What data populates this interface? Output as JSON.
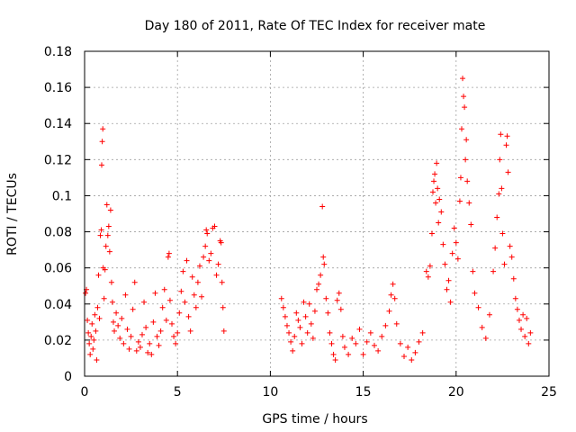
{
  "chart_data": {
    "type": "scatter",
    "title": "Day 180 of 2011, Rate Of TEC Index for receiver mate",
    "xlabel": "GPS time / hours",
    "ylabel": "ROTI / TECUs",
    "xlim": [
      0,
      25
    ],
    "ylim": [
      0,
      0.18
    ],
    "xticks": [
      "0",
      "5",
      "10",
      "15",
      "20",
      "25"
    ],
    "yticks": [
      "0",
      "0.02",
      "0.04",
      "0.06",
      "0.08",
      "0.1",
      "0.12",
      "0.14",
      "0.16",
      "0.18"
    ],
    "xtick_values": [
      0,
      5,
      10,
      15,
      20,
      25
    ],
    "ytick_values": [
      0,
      0.02,
      0.04,
      0.06,
      0.08,
      0.1,
      0.12,
      0.14,
      0.16,
      0.18
    ],
    "grid": true,
    "marker": "+",
    "color": "#ff0000",
    "series": [
      {
        "name": "",
        "points": [
          [
            0.05,
            0.046
          ],
          [
            0.1,
            0.048
          ],
          [
            0.15,
            0.031
          ],
          [
            0.2,
            0.024
          ],
          [
            0.25,
            0.018
          ],
          [
            0.3,
            0.012
          ],
          [
            0.35,
            0.022
          ],
          [
            0.4,
            0.029
          ],
          [
            0.45,
            0.015
          ],
          [
            0.5,
            0.02
          ],
          [
            0.55,
            0.034
          ],
          [
            0.6,
            0.025
          ],
          [
            0.65,
            0.009
          ],
          [
            0.7,
            0.038
          ],
          [
            0.75,
            0.056
          ],
          [
            0.8,
            0.032
          ],
          [
            0.85,
            0.078
          ],
          [
            0.9,
            0.081
          ],
          [
            0.92,
            0.117
          ],
          [
            0.95,
            0.13
          ],
          [
            0.98,
            0.137
          ],
          [
            1.0,
            0.06
          ],
          [
            1.05,
            0.043
          ],
          [
            1.1,
            0.059
          ],
          [
            1.15,
            0.072
          ],
          [
            1.2,
            0.095
          ],
          [
            1.25,
            0.078
          ],
          [
            1.3,
            0.083
          ],
          [
            1.35,
            0.069
          ],
          [
            1.4,
            0.092
          ],
          [
            1.45,
            0.052
          ],
          [
            1.5,
            0.041
          ],
          [
            1.55,
            0.03
          ],
          [
            1.6,
            0.025
          ],
          [
            1.7,
            0.035
          ],
          [
            1.8,
            0.028
          ],
          [
            1.9,
            0.021
          ],
          [
            2.0,
            0.032
          ],
          [
            2.1,
            0.018
          ],
          [
            2.2,
            0.045
          ],
          [
            2.3,
            0.026
          ],
          [
            2.4,
            0.015
          ],
          [
            2.5,
            0.022
          ],
          [
            2.6,
            0.037
          ],
          [
            2.7,
            0.052
          ],
          [
            2.8,
            0.014
          ],
          [
            2.9,
            0.019
          ],
          [
            3.0,
            0.016
          ],
          [
            3.1,
            0.023
          ],
          [
            3.2,
            0.041
          ],
          [
            3.3,
            0.027
          ],
          [
            3.4,
            0.013
          ],
          [
            3.5,
            0.018
          ],
          [
            3.6,
            0.012
          ],
          [
            3.7,
            0.03
          ],
          [
            3.8,
            0.046
          ],
          [
            3.9,
            0.022
          ],
          [
            4.0,
            0.017
          ],
          [
            4.1,
            0.025
          ],
          [
            4.2,
            0.038
          ],
          [
            4.3,
            0.048
          ],
          [
            4.4,
            0.031
          ],
          [
            4.5,
            0.066
          ],
          [
            4.55,
            0.068
          ],
          [
            4.6,
            0.042
          ],
          [
            4.7,
            0.029
          ],
          [
            4.8,
            0.022
          ],
          [
            4.9,
            0.018
          ],
          [
            5.0,
            0.024
          ],
          [
            5.1,
            0.035
          ],
          [
            5.2,
            0.047
          ],
          [
            5.3,
            0.058
          ],
          [
            5.4,
            0.041
          ],
          [
            5.5,
            0.064
          ],
          [
            5.6,
            0.033
          ],
          [
            5.7,
            0.025
          ],
          [
            5.8,
            0.055
          ],
          [
            5.9,
            0.045
          ],
          [
            6.0,
            0.038
          ],
          [
            6.1,
            0.052
          ],
          [
            6.2,
            0.061
          ],
          [
            6.3,
            0.044
          ],
          [
            6.4,
            0.066
          ],
          [
            6.5,
            0.072
          ],
          [
            6.55,
            0.081
          ],
          [
            6.6,
            0.079
          ],
          [
            6.7,
            0.064
          ],
          [
            6.8,
            0.068
          ],
          [
            6.9,
            0.082
          ],
          [
            7.0,
            0.083
          ],
          [
            7.1,
            0.056
          ],
          [
            7.2,
            0.062
          ],
          [
            7.3,
            0.075
          ],
          [
            7.35,
            0.074
          ],
          [
            7.4,
            0.052
          ],
          [
            7.45,
            0.038
          ],
          [
            7.5,
            0.025
          ],
          [
            10.6,
            0.043
          ],
          [
            10.7,
            0.038
          ],
          [
            10.8,
            0.033
          ],
          [
            10.9,
            0.028
          ],
          [
            11.0,
            0.024
          ],
          [
            11.1,
            0.019
          ],
          [
            11.2,
            0.014
          ],
          [
            11.3,
            0.022
          ],
          [
            11.4,
            0.035
          ],
          [
            11.5,
            0.031
          ],
          [
            11.6,
            0.027
          ],
          [
            11.7,
            0.018
          ],
          [
            11.8,
            0.041
          ],
          [
            11.9,
            0.033
          ],
          [
            12.0,
            0.024
          ],
          [
            12.1,
            0.04
          ],
          [
            12.2,
            0.029
          ],
          [
            12.3,
            0.021
          ],
          [
            12.4,
            0.036
          ],
          [
            12.5,
            0.048
          ],
          [
            12.6,
            0.051
          ],
          [
            12.7,
            0.056
          ],
          [
            12.8,
            0.094
          ],
          [
            12.85,
            0.066
          ],
          [
            12.9,
            0.062
          ],
          [
            13.0,
            0.043
          ],
          [
            13.1,
            0.035
          ],
          [
            13.2,
            0.024
          ],
          [
            13.3,
            0.018
          ],
          [
            13.4,
            0.012
          ],
          [
            13.5,
            0.009
          ],
          [
            13.6,
            0.042
          ],
          [
            13.7,
            0.046
          ],
          [
            13.8,
            0.037
          ],
          [
            13.9,
            0.022
          ],
          [
            14.0,
            0.016
          ],
          [
            14.2,
            0.012
          ],
          [
            14.4,
            0.021
          ],
          [
            14.6,
            0.018
          ],
          [
            14.8,
            0.026
          ],
          [
            15.0,
            0.012
          ],
          [
            15.2,
            0.019
          ],
          [
            15.4,
            0.024
          ],
          [
            15.6,
            0.017
          ],
          [
            15.8,
            0.014
          ],
          [
            16.0,
            0.022
          ],
          [
            16.2,
            0.028
          ],
          [
            16.4,
            0.036
          ],
          [
            16.5,
            0.045
          ],
          [
            16.6,
            0.051
          ],
          [
            16.7,
            0.043
          ],
          [
            16.8,
            0.029
          ],
          [
            17.0,
            0.018
          ],
          [
            17.2,
            0.011
          ],
          [
            17.4,
            0.016
          ],
          [
            17.6,
            0.009
          ],
          [
            17.8,
            0.013
          ],
          [
            18.0,
            0.019
          ],
          [
            18.2,
            0.024
          ],
          [
            18.4,
            0.058
          ],
          [
            18.5,
            0.055
          ],
          [
            18.6,
            0.061
          ],
          [
            18.7,
            0.079
          ],
          [
            18.75,
            0.102
          ],
          [
            18.8,
            0.108
          ],
          [
            18.85,
            0.112
          ],
          [
            18.9,
            0.096
          ],
          [
            18.95,
            0.118
          ],
          [
            19.0,
            0.104
          ],
          [
            19.05,
            0.085
          ],
          [
            19.1,
            0.098
          ],
          [
            19.2,
            0.091
          ],
          [
            19.3,
            0.073
          ],
          [
            19.4,
            0.062
          ],
          [
            19.5,
            0.048
          ],
          [
            19.6,
            0.053
          ],
          [
            19.7,
            0.041
          ],
          [
            19.8,
            0.068
          ],
          [
            19.9,
            0.082
          ],
          [
            20.0,
            0.074
          ],
          [
            20.1,
            0.065
          ],
          [
            20.2,
            0.097
          ],
          [
            20.25,
            0.11
          ],
          [
            20.3,
            0.137
          ],
          [
            20.35,
            0.165
          ],
          [
            20.4,
            0.155
          ],
          [
            20.45,
            0.149
          ],
          [
            20.5,
            0.12
          ],
          [
            20.55,
            0.131
          ],
          [
            20.6,
            0.108
          ],
          [
            20.7,
            0.096
          ],
          [
            20.8,
            0.084
          ],
          [
            20.9,
            0.058
          ],
          [
            21.0,
            0.046
          ],
          [
            21.2,
            0.038
          ],
          [
            21.4,
            0.027
          ],
          [
            21.6,
            0.021
          ],
          [
            21.8,
            0.034
          ],
          [
            22.0,
            0.058
          ],
          [
            22.1,
            0.071
          ],
          [
            22.2,
            0.088
          ],
          [
            22.3,
            0.101
          ],
          [
            22.35,
            0.12
          ],
          [
            22.4,
            0.134
          ],
          [
            22.45,
            0.104
          ],
          [
            22.5,
            0.079
          ],
          [
            22.6,
            0.062
          ],
          [
            22.7,
            0.128
          ],
          [
            22.75,
            0.133
          ],
          [
            22.8,
            0.113
          ],
          [
            22.9,
            0.072
          ],
          [
            23.0,
            0.066
          ],
          [
            23.1,
            0.054
          ],
          [
            23.2,
            0.043
          ],
          [
            23.3,
            0.037
          ],
          [
            23.4,
            0.031
          ],
          [
            23.5,
            0.026
          ],
          [
            23.6,
            0.034
          ],
          [
            23.7,
            0.022
          ],
          [
            23.8,
            0.032
          ],
          [
            23.9,
            0.018
          ],
          [
            24.0,
            0.024
          ]
        ]
      }
    ]
  }
}
